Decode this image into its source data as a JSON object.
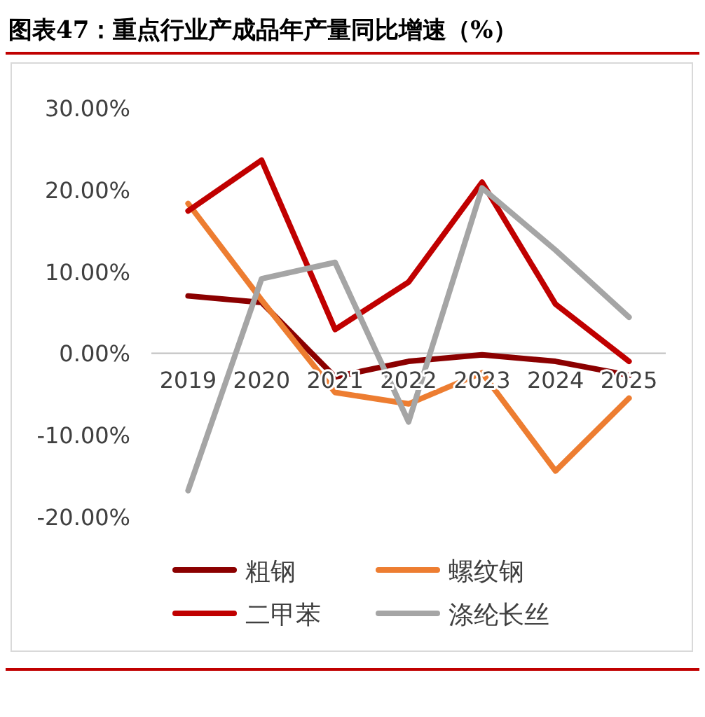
{
  "chart_data": {
    "type": "line",
    "title": "图表47：重点行业产成品年产量同比增速（%）",
    "categories": [
      "2019",
      "2020",
      "2021",
      "2022",
      "2023",
      "2024",
      "2025"
    ],
    "ylim": [
      -20,
      30
    ],
    "yticks": [
      {
        "value": 30,
        "label": "30.00%"
      },
      {
        "value": 20,
        "label": "20.00%"
      },
      {
        "value": 10,
        "label": "10.00%"
      },
      {
        "value": 0,
        "label": "0.00%"
      },
      {
        "value": -10,
        "label": "-10.00%"
      },
      {
        "value": -20,
        "label": "-20.00%"
      }
    ],
    "legend": "bottom",
    "marker": "none",
    "line_style": "solid",
    "series": [
      {
        "name": "粗钢",
        "color": "#8b0000",
        "values": [
          7.0,
          6.2,
          -2.9,
          -1.0,
          -0.2,
          -1.0,
          -2.7
        ]
      },
      {
        "name": "螺纹钢",
        "color": "#ed7d31",
        "values": [
          18.3,
          6.5,
          -4.8,
          -6.2,
          -2.4,
          -14.4,
          -5.5
        ]
      },
      {
        "name": "二甲苯",
        "color": "#c00000",
        "values": [
          17.4,
          23.6,
          2.9,
          8.7,
          20.9,
          6.0,
          -1.0
        ]
      },
      {
        "name": "涤纶长丝",
        "color": "#a5a5a5",
        "values": [
          -16.8,
          9.1,
          11.1,
          -8.4,
          20.2,
          12.6,
          4.4
        ]
      }
    ]
  }
}
